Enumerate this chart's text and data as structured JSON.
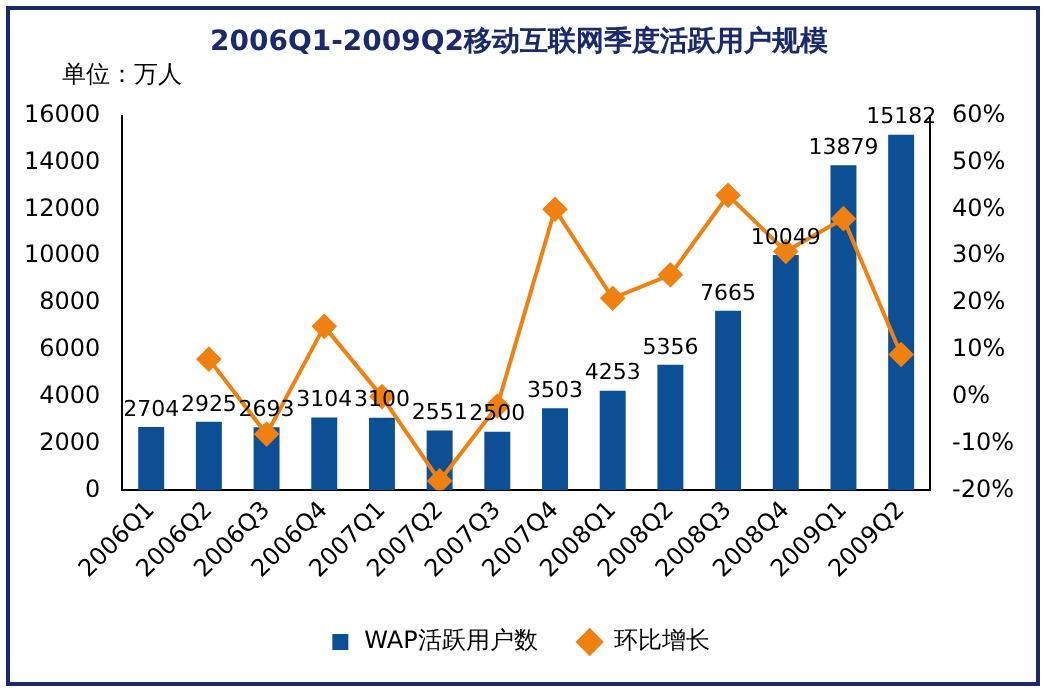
{
  "chart_data": {
    "type": "bar",
    "title": "2006Q1-2009Q2移动互联网季度活跃用户规模",
    "categories": [
      "2006Q1",
      "2006Q2",
      "2006Q3",
      "2006Q4",
      "2007Q1",
      "2007Q2",
      "2007Q3",
      "2007Q4",
      "2008Q1",
      "2008Q2",
      "2008Q3",
      "2008Q4",
      "2009Q1",
      "2009Q2"
    ],
    "series": [
      {
        "name": "WAP活跃用户数",
        "color": "#0d4f94",
        "values": [
          2704,
          2925,
          2693,
          3104,
          3100,
          2551,
          2500,
          3503,
          4253,
          5356,
          7665,
          10049,
          13879,
          15182
        ],
        "value_labels": [
          "2704",
          "2925",
          "2693",
          "3104",
          "3100",
          "2551",
          "2500",
          "3503",
          "4253",
          "5356",
          "7665",
          "10049",
          "13879",
          "15182"
        ]
      },
      {
        "name": "环比增长",
        "type": "line",
        "axis": "y2",
        "color": "#f08010",
        "marker": "diamond",
        "values": [
          null,
          8,
          -8,
          15,
          0,
          -18,
          -2,
          40,
          21,
          26,
          43,
          31,
          38,
          9
        ]
      }
    ],
    "ylim": [
      0,
      16000
    ],
    "yticks": [
      0,
      2000,
      4000,
      6000,
      8000,
      10000,
      12000,
      14000,
      16000
    ],
    "y2lim": [
      -20,
      60
    ],
    "y2ticks": [
      {
        "value": -20,
        "label": "-20%"
      },
      {
        "value": -10,
        "label": "-10%"
      },
      {
        "value": 0,
        "label": "0%"
      },
      {
        "value": 10,
        "label": "10%"
      },
      {
        "value": 20,
        "label": "20%"
      },
      {
        "value": 30,
        "label": "30%"
      },
      {
        "value": 40,
        "label": "40%"
      },
      {
        "value": 50,
        "label": "50%"
      },
      {
        "value": 60,
        "label": "60%"
      }
    ],
    "grid": false,
    "legend": "bottom",
    "annotations": [
      "单位：万人"
    ]
  }
}
